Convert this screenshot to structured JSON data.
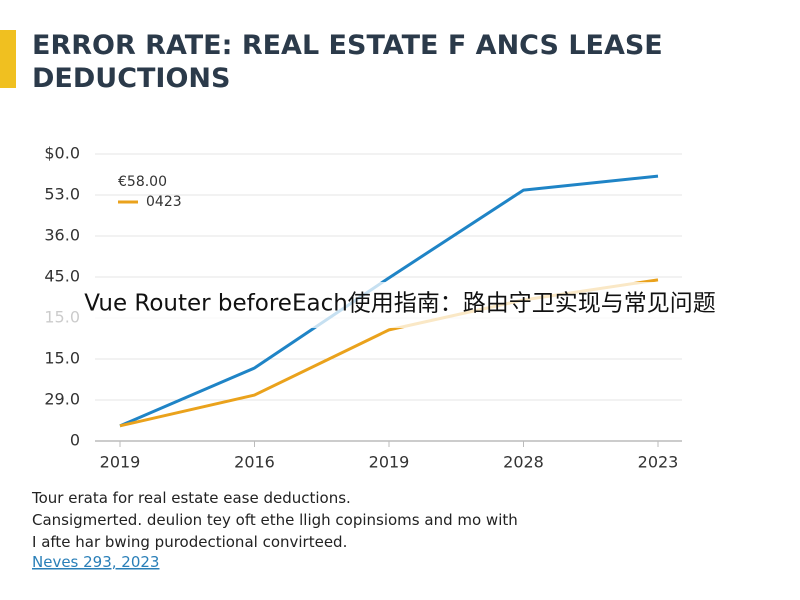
{
  "overlay": "Vue Router beforeEach使用指南：路由守卫实现与常见问题",
  "chart_data": {
    "type": "line",
    "title": [
      "ERROR RATE: REAL ESTATE F ANCS LEASE",
      "DEDUCTIONS"
    ],
    "categories": [
      "2019",
      "2016",
      "2019",
      "2028",
      "2023"
    ],
    "series": [
      {
        "name": "€58.00",
        "color": "#1f84c6",
        "values": [
          3.7,
          17.8,
          39.8,
          61.2,
          64.6
        ]
      },
      {
        "name": "0423",
        "color": "#eaa21c",
        "values": [
          3.7,
          11.2,
          27.1,
          34.4,
          39.3
        ]
      }
    ],
    "ylim": [
      0,
      70
    ],
    "yticks": [
      0,
      {
        "value": 10,
        "label": "29.0"
      },
      {
        "value": 20,
        "label": "15.0"
      },
      {
        "value": 30,
        "label": "15.0"
      },
      {
        "value": 40,
        "label": "45.0"
      },
      {
        "value": 50,
        "label": "36.0"
      },
      {
        "value": 60,
        "label": "53.0"
      },
      {
        "value": 70,
        "label": "$0.0"
      }
    ],
    "grid": true,
    "legend": "top-left",
    "caption": [
      "Tour erata for real estate ease deductions.",
      "Cansigmerted. deulion tey oft ethe lligh copinsioms and mo with",
      "I afte har bwing purodectional convirteed."
    ],
    "source": "Neves 293, 2023"
  }
}
